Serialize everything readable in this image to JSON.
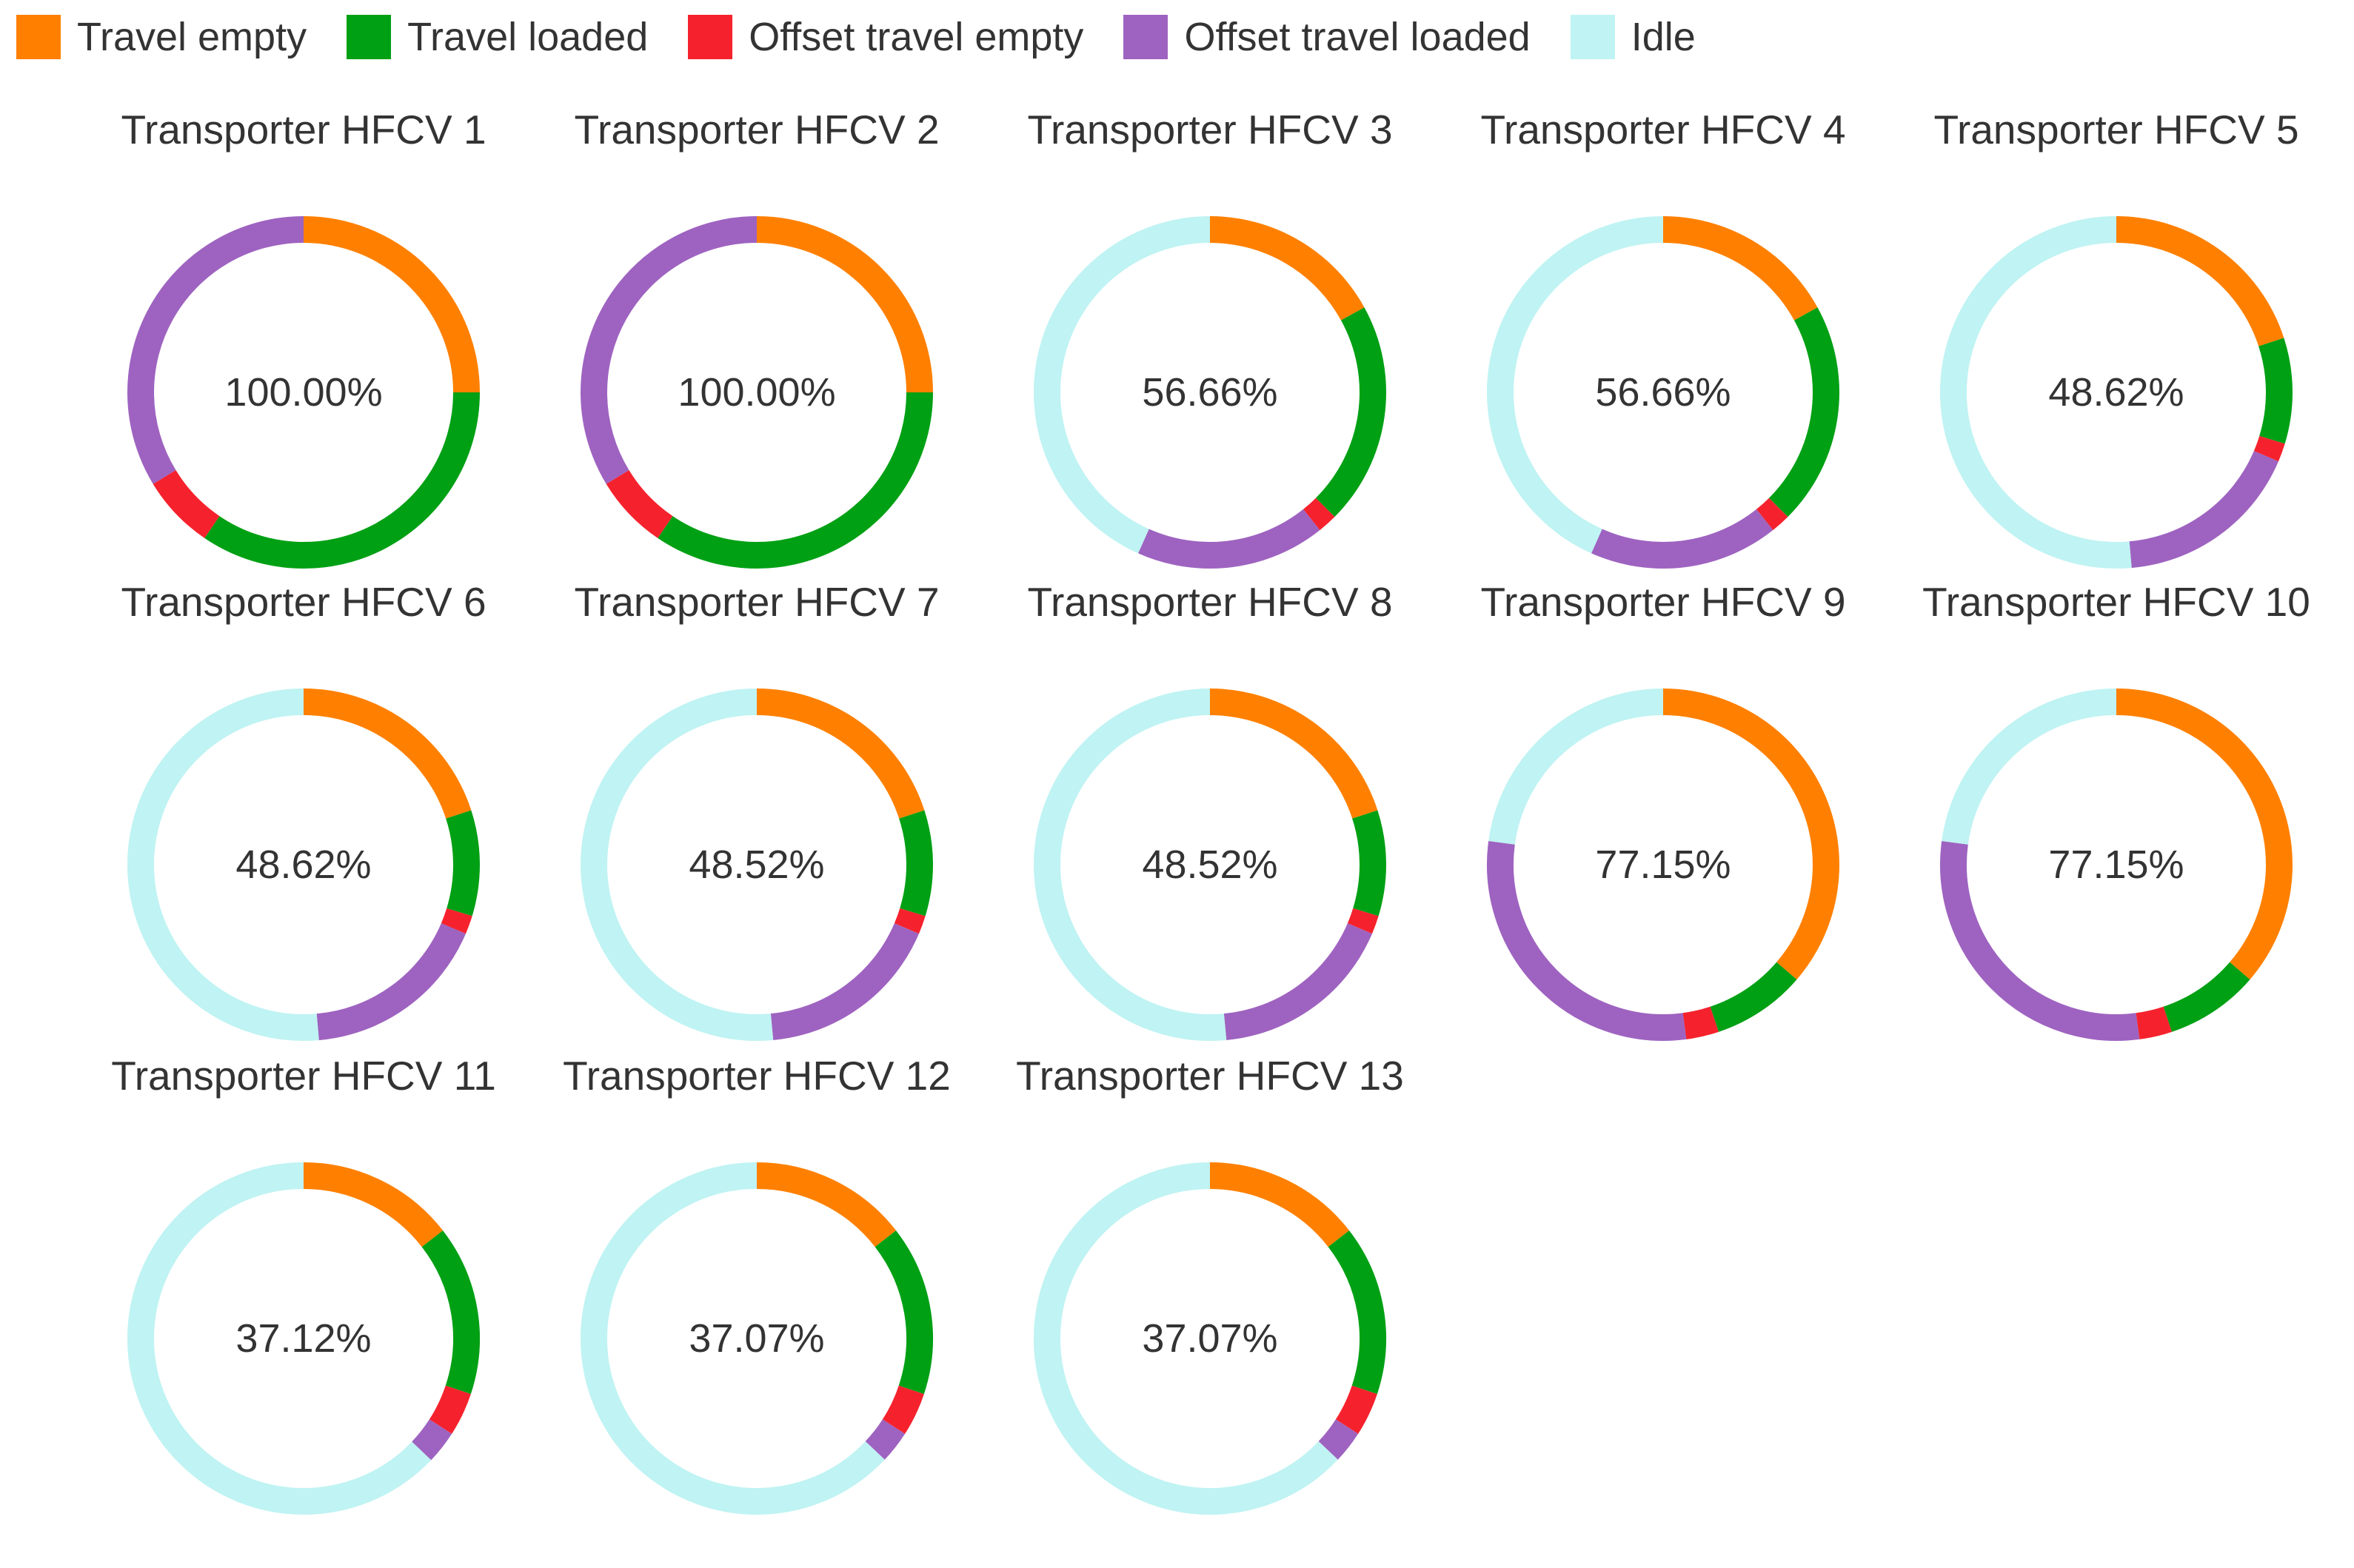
{
  "legend": [
    {
      "label": "Travel empty",
      "color": "#ff8000"
    },
    {
      "label": "Travel loaded",
      "color": "#00a014"
    },
    {
      "label": "Offset travel empty",
      "color": "#f5222d"
    },
    {
      "label": "Offset travel loaded",
      "color": "#9e63c0"
    },
    {
      "label": "Idle",
      "color": "#c0f3f3"
    }
  ],
  "chart_data": {
    "type": "pie",
    "style": "donut",
    "legend_position": "top-left",
    "series_names": [
      "Travel empty",
      "Travel loaded",
      "Offset travel empty",
      "Offset travel loaded",
      "Idle"
    ],
    "charts": [
      {
        "title": "Transporter HFCV 1",
        "center_label": "100.00%",
        "values": [
          25.0,
          34.5,
          6.8,
          33.7,
          0.0
        ]
      },
      {
        "title": "Transporter HFCV 2",
        "center_label": "100.00%",
        "values": [
          25.0,
          34.5,
          6.8,
          33.7,
          0.0
        ]
      },
      {
        "title": "Transporter HFCV 3",
        "center_label": "56.66%",
        "values": [
          17.0,
          20.5,
          1.8,
          17.4,
          43.34
        ]
      },
      {
        "title": "Transporter HFCV 4",
        "center_label": "56.66%",
        "values": [
          17.0,
          20.5,
          1.8,
          17.4,
          43.34
        ]
      },
      {
        "title": "Transporter HFCV 5",
        "center_label": "48.62%",
        "values": [
          20.0,
          9.7,
          1.7,
          17.2,
          51.38
        ]
      },
      {
        "title": "Transporter HFCV 6",
        "center_label": "48.62%",
        "values": [
          20.0,
          9.7,
          1.7,
          17.2,
          51.38
        ]
      },
      {
        "title": "Transporter HFCV 7",
        "center_label": "48.52%",
        "values": [
          20.0,
          9.7,
          1.7,
          17.1,
          51.48
        ]
      },
      {
        "title": "Transporter HFCV 8",
        "center_label": "48.52%",
        "values": [
          20.0,
          9.7,
          1.7,
          17.1,
          51.48
        ]
      },
      {
        "title": "Transporter HFCV 9",
        "center_label": "77.15%",
        "values": [
          36.3,
          8.6,
          3.0,
          29.25,
          22.85
        ]
      },
      {
        "title": "Transporter HFCV 10",
        "center_label": "77.15%",
        "values": [
          36.3,
          8.6,
          3.0,
          29.25,
          22.85
        ]
      },
      {
        "title": "Transporter HFCV 11",
        "center_label": "37.12%",
        "values": [
          14.5,
          15.6,
          4.0,
          3.02,
          62.88
        ]
      },
      {
        "title": "Transporter HFCV 12",
        "center_label": "37.07%",
        "values": [
          14.5,
          15.6,
          4.0,
          2.97,
          62.93
        ]
      },
      {
        "title": "Transporter HFCV 13",
        "center_label": "37.07%",
        "values": [
          14.5,
          15.6,
          4.0,
          2.97,
          62.93
        ]
      }
    ]
  }
}
